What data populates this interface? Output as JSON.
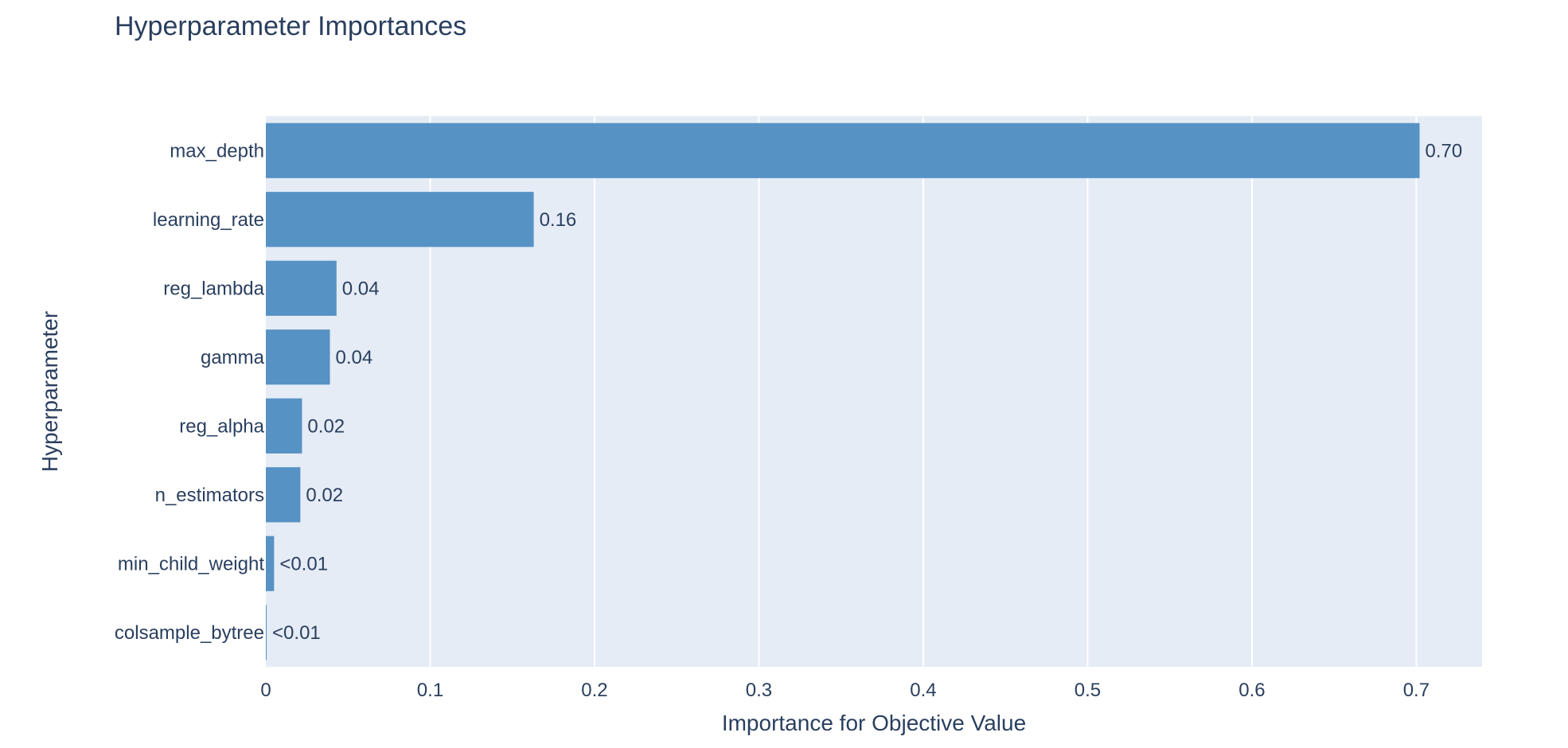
{
  "chart_data": {
    "type": "bar",
    "orientation": "horizontal",
    "title": "Hyperparameter Importances",
    "xlabel": "Importance for Objective Value",
    "ylabel": "Hyperparameter",
    "xlim": [
      0,
      0.74
    ],
    "x_ticks": [
      0,
      0.1,
      0.2,
      0.3,
      0.4,
      0.5,
      0.6,
      0.7
    ],
    "x_tick_labels": [
      "0",
      "0.1",
      "0.2",
      "0.3",
      "0.4",
      "0.5",
      "0.6",
      "0.7"
    ],
    "grid": true,
    "colors": {
      "bar": "#5692c4",
      "plot_background": "#e5ecf6",
      "grid": "#ffffff",
      "text": "#2a3f5f"
    },
    "categories": [
      "max_depth",
      "learning_rate",
      "reg_lambda",
      "gamma",
      "reg_alpha",
      "n_estimators",
      "min_child_weight",
      "colsample_bytree"
    ],
    "values": [
      0.702,
      0.163,
      0.043,
      0.039,
      0.022,
      0.021,
      0.005,
      0.0005
    ],
    "data_labels": [
      "0.70",
      "0.16",
      "0.04",
      "0.04",
      "0.02",
      "0.02",
      "<0.01",
      "<0.01"
    ]
  }
}
